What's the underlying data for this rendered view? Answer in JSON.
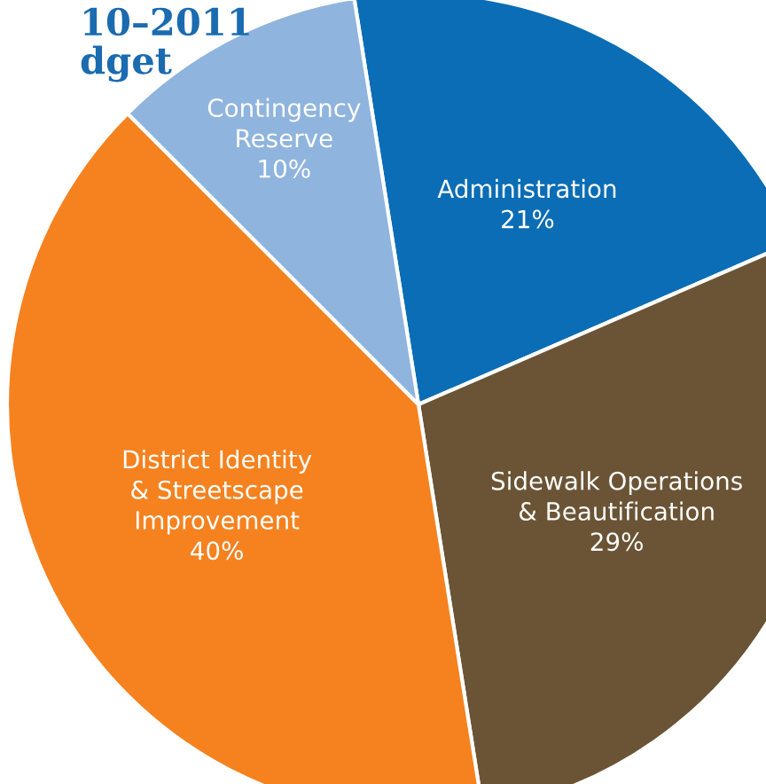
{
  "chart_data": {
    "type": "pie",
    "title": "10–2011\ndget",
    "categories": [
      "Administration",
      "Sidewalk Operations\n& Beautification",
      "District Identity\n& Streetscape\nImprovement",
      "Contingency\nReserve"
    ],
    "values": [
      21,
      29,
      40,
      10
    ],
    "value_labels": [
      "21%",
      "29%",
      "40%",
      "10%"
    ],
    "colors": [
      "#0a6db5",
      "#6b5435",
      "#f5821f",
      "#8fb4de"
    ],
    "legend": false
  }
}
